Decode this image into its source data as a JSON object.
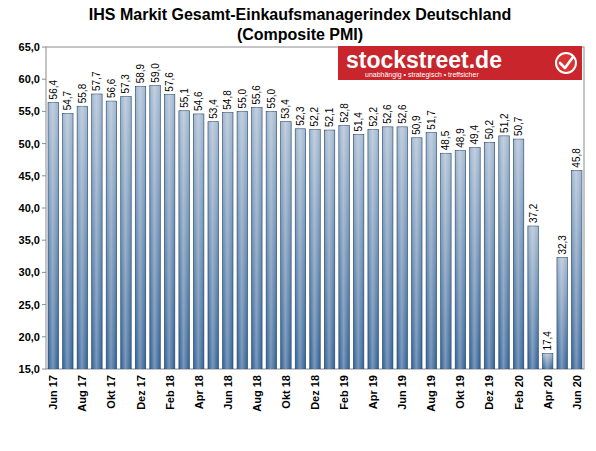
{
  "chart_data": {
    "type": "bar",
    "title": "IHS Markit Gesamt-Einkaufsmanagerindex Deutschland",
    "subtitle": "(Composite PMI)",
    "annotations": [
      "stockstreet.de",
      "unabhängig • strategisch • treffsicher"
    ],
    "categories": [
      "Jun 17",
      null,
      "Aug 17",
      null,
      "Okt 17",
      null,
      "Dez 17",
      null,
      "Feb 18",
      null,
      "Apr 18",
      null,
      "Jun 18",
      null,
      "Aug 18",
      null,
      "Okt 18",
      null,
      "Dez 18",
      null,
      "Feb 19",
      null,
      "Apr 19",
      null,
      "Jun 19",
      null,
      "Aug 19",
      null,
      "Okt 19",
      null,
      "Dez 19",
      null,
      "Feb 20",
      null,
      "Apr 20",
      null,
      "Jun 20"
    ],
    "values": [
      56.4,
      54.7,
      55.8,
      57.7,
      56.6,
      57.3,
      58.9,
      59.0,
      57.6,
      55.1,
      54.6,
      53.4,
      54.8,
      55.0,
      55.6,
      55.0,
      53.4,
      52.3,
      52.2,
      52.1,
      52.8,
      51.4,
      52.2,
      52.6,
      52.6,
      50.9,
      51.7,
      48.5,
      48.9,
      49.4,
      50.2,
      51.2,
      50.7,
      37.2,
      17.4,
      32.3,
      45.8
    ],
    "value_labels": [
      "56,4",
      "54,7",
      "55,8",
      "57,7",
      "56,6",
      "57,3",
      "58,9",
      "59,0",
      "57,6",
      "55,1",
      "54,6",
      "53,4",
      "54,8",
      "55,0",
      "55,6",
      "55,0",
      "53,4",
      "52,3",
      "52,2",
      "52,1",
      "52,8",
      "51,4",
      "52,2",
      "52,6",
      "52,6",
      "50,9",
      "51,7",
      "48,5",
      "48,9",
      "49,4",
      "50,2",
      "51,2",
      "50,7",
      "37,2",
      "17,4",
      "32,3",
      "45,8"
    ],
    "color": "#2f5f94",
    "ylim": [
      15,
      65
    ],
    "yticks": [
      {
        "value": 15,
        "label": "15,0"
      },
      {
        "value": 20,
        "label": "20,0"
      },
      {
        "value": 25,
        "label": "25,0"
      },
      {
        "value": 30,
        "label": "30,0"
      },
      {
        "value": 35,
        "label": "35,0"
      },
      {
        "value": 40,
        "label": "40,0"
      },
      {
        "value": 45,
        "label": "45,0"
      },
      {
        "value": 50,
        "label": "50,0"
      },
      {
        "value": 55,
        "label": "55,0"
      },
      {
        "value": 60,
        "label": "60,0"
      },
      {
        "value": 65,
        "label": "65,0"
      }
    ],
    "grid": false,
    "data_labels": true
  }
}
